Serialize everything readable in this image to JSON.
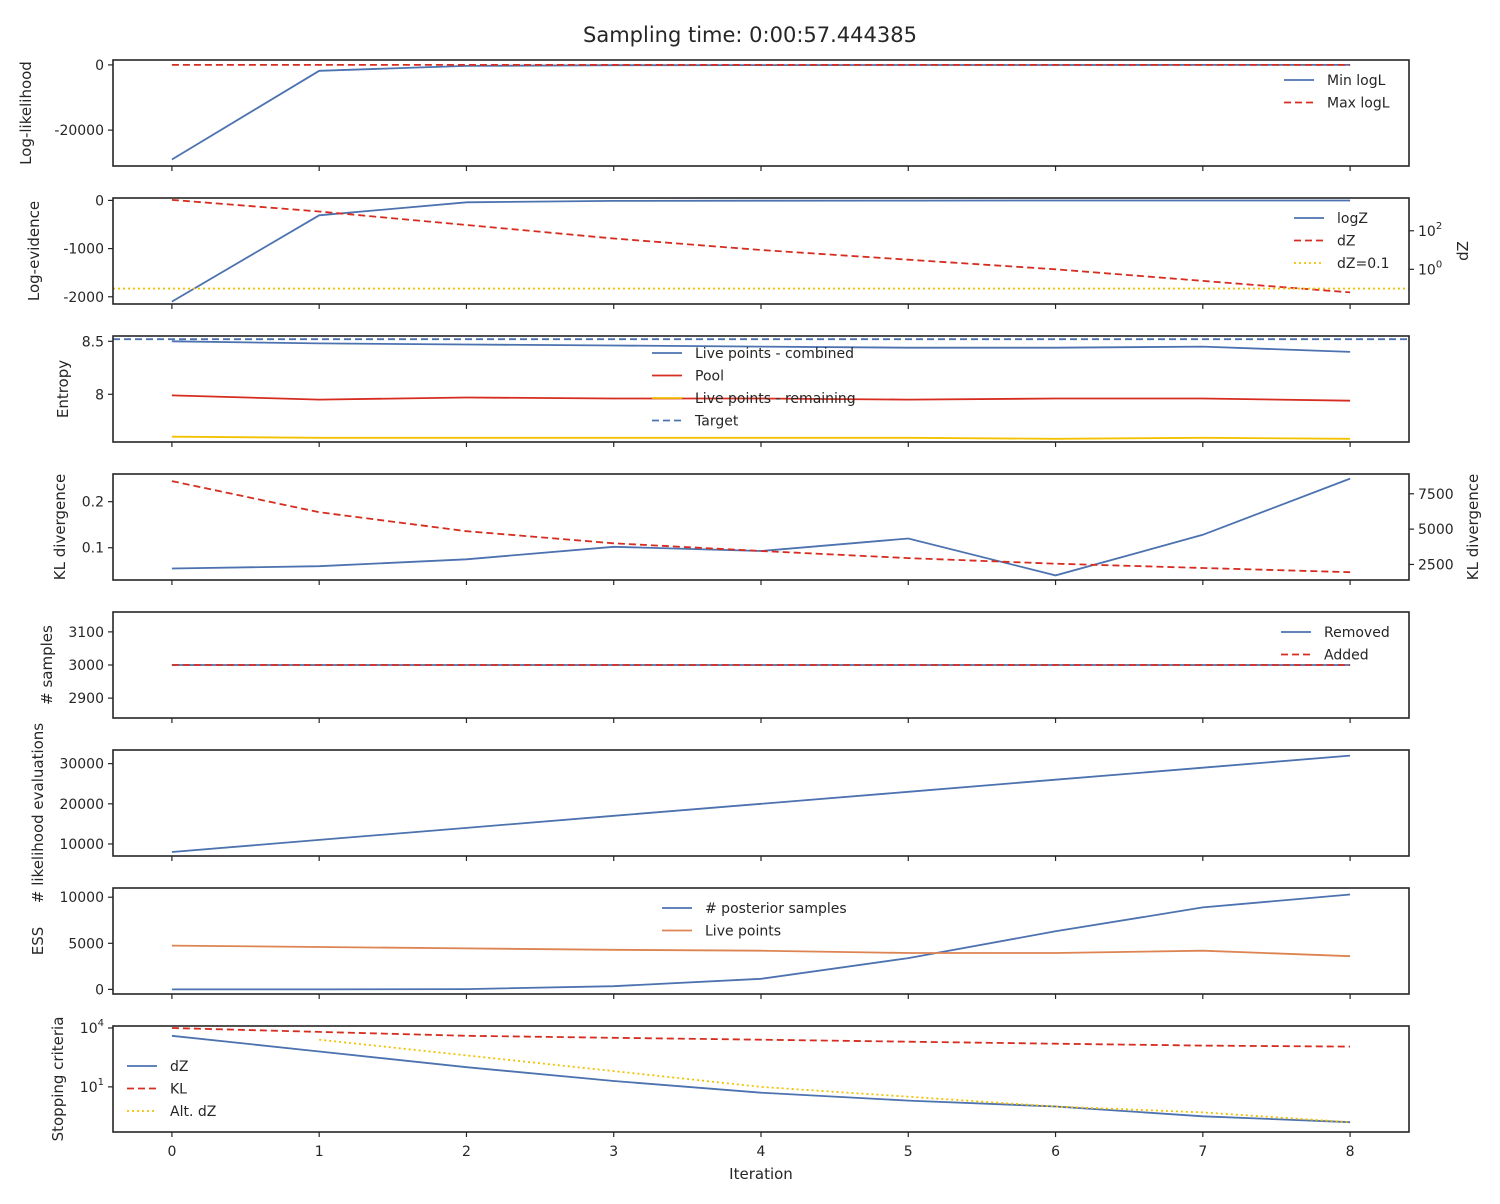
{
  "chart_data": {
    "type": "line",
    "title": "Sampling time: 0:00:57.444385",
    "xlabel": "Iteration",
    "x": [
      0,
      1,
      2,
      3,
      4,
      5,
      6,
      7,
      8
    ],
    "xlim": [
      -0.4,
      8.4
    ],
    "xticks": [
      0,
      1,
      2,
      3,
      4,
      5,
      6,
      7,
      8
    ],
    "colors": {
      "blue": "#4c72b0",
      "red": "#d62d20",
      "orange": "#dd8452",
      "yellow": "#f2c200"
    },
    "panels": [
      {
        "name": "log-likelihood",
        "ylabel": "Log-likelihood",
        "ylim": [
          -31000,
          1500
        ],
        "yticks": [
          -20000,
          0
        ],
        "legend": {
          "placement": "right"
        },
        "series": [
          {
            "name": "Min logL",
            "color": "blue",
            "dash": "solid",
            "values": [
              -29000,
              -1800,
              -300,
              -100,
              -50,
              -30,
              -20,
              -10,
              -5
            ]
          },
          {
            "name": "Max logL",
            "color": "red",
            "dash": "dashed",
            "values": [
              -10,
              -8,
              -6,
              -5,
              -4,
              -4,
              -3,
              -3,
              -3
            ]
          }
        ]
      },
      {
        "name": "log-evidence",
        "ylabel": "Log-evidence",
        "ylim": [
          -2150,
          50
        ],
        "yticks": [
          -2000,
          -1000,
          0
        ],
        "y2label": "dZ",
        "y2scale": "log",
        "y2lim_log10": [
          -1.8,
          3.7
        ],
        "y2ticks": [
          {
            "label": "10",
            "exp": "2",
            "log10": 2
          },
          {
            "label": "10",
            "exp": "0",
            "log10": 0
          }
        ],
        "legend": {
          "placement": "right"
        },
        "series": [
          {
            "name": "logZ",
            "color": "blue",
            "dash": "solid",
            "axis": "left",
            "values": [
              -2100,
              -310,
              -40,
              -10,
              -5,
              -3,
              -2,
              -2,
              -2
            ]
          },
          {
            "name": "dZ",
            "color": "red",
            "dash": "dashed",
            "axis": "right",
            "log10_values": [
              3.6,
              3.0,
              2.3,
              1.6,
              1.0,
              0.5,
              0.0,
              -0.6,
              -1.2
            ]
          },
          {
            "name": "dZ=0.1",
            "color": "yellow",
            "dash": "dotted",
            "axis": "right",
            "log10_values": [
              -1,
              -1,
              -1,
              -1,
              -1,
              -1,
              -1,
              -1,
              -1
            ],
            "span": "full"
          }
        ]
      },
      {
        "name": "entropy",
        "ylabel": "Entropy",
        "ylim": [
          7.55,
          8.55
        ],
        "yticks": [
          8.0,
          8.5
        ],
        "legend": {
          "placement": "center"
        },
        "series": [
          {
            "name": "Live points - combined",
            "color": "blue",
            "dash": "solid",
            "values": [
              8.5,
              8.48,
              8.47,
              8.46,
              8.45,
              8.44,
              8.44,
              8.45,
              8.4
            ]
          },
          {
            "name": "Pool",
            "color": "red",
            "dash": "solid",
            "values": [
              7.99,
              7.95,
              7.97,
              7.96,
              7.96,
              7.95,
              7.96,
              7.96,
              7.94
            ]
          },
          {
            "name": "Live points - remaining",
            "color": "yellow",
            "dash": "solid",
            "values": [
              7.6,
              7.59,
              7.59,
              7.59,
              7.59,
              7.59,
              7.58,
              7.59,
              7.58
            ]
          },
          {
            "name": "Target",
            "color": "blue",
            "dash": "dashed",
            "values": [
              8.52,
              8.52,
              8.52,
              8.52,
              8.52,
              8.52,
              8.52,
              8.52,
              8.52
            ],
            "span": "full"
          }
        ]
      },
      {
        "name": "kl-divergence",
        "ylabel": "KL divergence",
        "ylim": [
          0.03,
          0.26
        ],
        "yticks": [
          0.1,
          0.2
        ],
        "y2label": "KL divergence",
        "y2lim": [
          1400,
          8900
        ],
        "y2ticks": [
          2500,
          5000,
          7500
        ],
        "series": [
          {
            "name": "KL divergence",
            "color": "blue",
            "dash": "solid",
            "axis": "left",
            "values": [
              0.055,
              0.06,
              0.075,
              0.102,
              0.093,
              0.12,
              0.04,
              0.128,
              0.25
            ]
          },
          {
            "name": "KL divergence (right)",
            "color": "red",
            "dash": "dashed",
            "axis": "right",
            "values": [
              8400,
              6200,
              4850,
              4000,
              3450,
              2950,
              2550,
              2250,
              1950
            ]
          }
        ]
      },
      {
        "name": "samples",
        "ylabel": "# samples",
        "ylim": [
          2840,
          3160
        ],
        "yticks": [
          2900,
          3000,
          3100
        ],
        "legend": {
          "placement": "right"
        },
        "series": [
          {
            "name": "Removed",
            "color": "blue",
            "dash": "solid",
            "values": [
              3000,
              3000,
              3000,
              3000,
              3000,
              3000,
              3000,
              3000,
              3000
            ]
          },
          {
            "name": "Added",
            "color": "red",
            "dash": "dashed",
            "values": [
              3000,
              3000,
              3000,
              3000,
              3000,
              3000,
              3000,
              3000,
              3000
            ]
          }
        ]
      },
      {
        "name": "likelihood-evaluations",
        "ylabel": "# likelihood evaluations",
        "ylim": [
          7000,
          33400
        ],
        "yticks": [
          10000,
          20000,
          30000
        ],
        "series": [
          {
            "name": "likelihood evaluations",
            "color": "blue",
            "dash": "solid",
            "values": [
              8000,
              11000,
              14000,
              17000,
              20000,
              23000,
              26000,
              29000,
              32000
            ]
          }
        ]
      },
      {
        "name": "ess",
        "ylabel": "ESS",
        "ylim": [
          -500,
          11000
        ],
        "yticks": [
          0,
          5000,
          10000
        ],
        "legend": {
          "placement": "center"
        },
        "series": [
          {
            "name": "# posterior samples",
            "color": "blue",
            "dash": "solid",
            "values": [
              0,
              0,
              30,
              350,
              1150,
              3400,
              6300,
              8900,
              10300
            ]
          },
          {
            "name": "Live points",
            "color": "orange",
            "dash": "solid",
            "values": [
              4750,
              4600,
              4450,
              4300,
              4200,
              3950,
              3950,
              4200,
              3600
            ]
          }
        ]
      },
      {
        "name": "stopping-criteria",
        "ylabel": "Stopping criteria",
        "yscale": "log",
        "ylim_log10": [
          -1.3,
          4.1
        ],
        "yticks": [
          {
            "label": "10",
            "exp": "4",
            "log10": 4
          },
          {
            "label": "10",
            "exp": "1",
            "log10": 1
          }
        ],
        "legend": {
          "placement": "left"
        },
        "series": [
          {
            "name": "dZ",
            "color": "blue",
            "dash": "solid",
            "log10_values": [
              3.6,
              2.8,
              2.0,
              1.3,
              0.7,
              0.3,
              0.0,
              -0.5,
              -0.8
            ]
          },
          {
            "name": "KL",
            "color": "red",
            "dash": "dashed",
            "log10_values": [
              4.0,
              3.8,
              3.6,
              3.5,
              3.4,
              3.3,
              3.2,
              3.1,
              3.05
            ]
          },
          {
            "name": "Alt. dZ",
            "color": "yellow",
            "dash": "dotted",
            "log10_values": [
              null,
              3.4,
              2.6,
              1.8,
              1.0,
              0.5,
              0.0,
              -0.3,
              -0.8
            ]
          }
        ]
      }
    ]
  }
}
